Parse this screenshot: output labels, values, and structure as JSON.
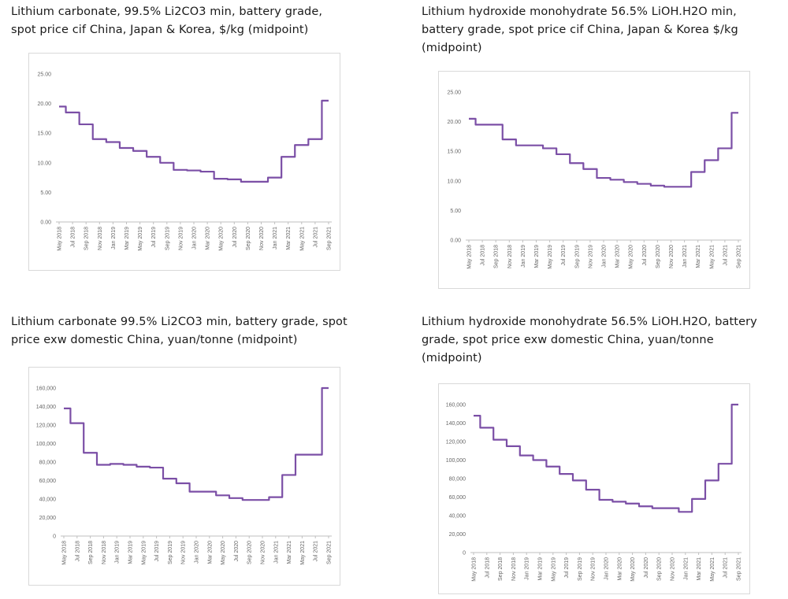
{
  "x_labels": [
    "May 2018",
    "Jul 2018",
    "Sep 2018",
    "Nov 2018",
    "Jan 2019",
    "Mar 2019",
    "May 2019",
    "Jul 2019",
    "Sep 2019",
    "Nov 2019",
    "Jan 2020",
    "Mar 2020",
    "May 2020",
    "Jul 2020",
    "Sep 2020",
    "Nov 2020",
    "Jan 2021",
    "Mar 2021",
    "May 2021",
    "Jul 2021",
    "Sep 2021"
  ],
  "colors": {
    "series": "#7b4fa6",
    "frame": "#d9d9d9"
  },
  "chart_data": [
    {
      "type": "line",
      "title": "Lithium carbonate, 99.5% Li2CO3 min, battery grade, spot price cif China, Japan & Korea, $/kg (midpoint)",
      "ylim": [
        0,
        25
      ],
      "yticks": [
        "0.00",
        "5.00",
        "10.00",
        "15.00",
        "20.00",
        "25.00"
      ],
      "x": [
        "May 2018",
        "Jul 2018",
        "Sep 2018",
        "Nov 2018",
        "Jan 2019",
        "Mar 2019",
        "May 2019",
        "Jul 2019",
        "Sep 2019",
        "Nov 2019",
        "Jan 2020",
        "Mar 2020",
        "May 2020",
        "Jul 2020",
        "Sep 2020",
        "Nov 2020",
        "Jan 2021",
        "Mar 2021",
        "May 2021",
        "Jul 2021",
        "Sep 2021"
      ],
      "series": [
        {
          "values": [
            19.5,
            18.5,
            16.5,
            14.0,
            13.5,
            12.5,
            12.0,
            11.0,
            10.0,
            8.8,
            8.7,
            8.5,
            7.3,
            7.2,
            6.8,
            6.8,
            7.5,
            11.0,
            13.0,
            14.0,
            20.5
          ]
        }
      ]
    },
    {
      "type": "line",
      "title": "Lithium hydroxide monohydrate 56.5% LiOH.H2O min, battery grade, spot price cif China, Japan & Korea $/kg (midpoint)",
      "ylim": [
        0,
        25
      ],
      "yticks": [
        "0.00",
        "5.00",
        "10.00",
        "15.00",
        "20.00",
        "25.00"
      ],
      "x": [
        "May 2018",
        "Jul 2018",
        "Sep 2018",
        "Nov 2018",
        "Jan 2019",
        "Mar 2019",
        "May 2019",
        "Jul 2019",
        "Sep 2019",
        "Nov 2019",
        "Jan 2020",
        "Mar 2020",
        "May 2020",
        "Jul 2020",
        "Sep 2020",
        "Nov 2020",
        "Jan 2021",
        "Mar 2021",
        "May 2021",
        "Jul 2021",
        "Sep 2021"
      ],
      "series": [
        {
          "values": [
            20.5,
            19.5,
            19.5,
            17.0,
            16.0,
            16.0,
            15.5,
            14.5,
            13.0,
            12.0,
            10.5,
            10.2,
            9.8,
            9.5,
            9.2,
            9.0,
            9.0,
            11.5,
            13.5,
            15.5,
            21.5
          ]
        }
      ]
    },
    {
      "type": "line",
      "title": "Lithium carbonate 99.5% Li2CO3 min, battery grade, spot price exw domestic China, yuan/tonne (midpoint)",
      "ylim": [
        0,
        160000
      ],
      "yticks": [
        "0",
        "20,000",
        "40,000",
        "60,000",
        "80,000",
        "100,000",
        "120,000",
        "140,000",
        "160,000"
      ],
      "x": [
        "May 2018",
        "Jul 2018",
        "Sep 2018",
        "Nov 2018",
        "Jan 2019",
        "Mar 2019",
        "May 2019",
        "Jul 2019",
        "Sep 2019",
        "Nov 2019",
        "Jan 2020",
        "Mar 2020",
        "May 2020",
        "Jul 2020",
        "Sep 2020",
        "Nov 2020",
        "Jan 2021",
        "Mar 2021",
        "May 2021",
        "Jul 2021",
        "Sep 2021"
      ],
      "series": [
        {
          "values": [
            138000,
            122000,
            90000,
            77000,
            78000,
            77000,
            75000,
            74000,
            62000,
            57000,
            48000,
            48000,
            44000,
            41000,
            39000,
            39000,
            42000,
            66000,
            88000,
            88000,
            160000
          ]
        }
      ]
    },
    {
      "type": "line",
      "title": "Lithium hydroxide monohydrate 56.5% LiOH.H2O, battery grade, spot price exw domestic China, yuan/tonne (midpoint)",
      "ylim": [
        0,
        160000
      ],
      "yticks": [
        "0",
        "20,000",
        "40,000",
        "60,000",
        "80,000",
        "100,000",
        "120,000",
        "140,000",
        "160,000"
      ],
      "x": [
        "May 2018",
        "Jul 2018",
        "Sep 2018",
        "Nov 2018",
        "Jan 2019",
        "Mar 2019",
        "May 2019",
        "Jul 2019",
        "Sep 2019",
        "Nov 2019",
        "Jan 2020",
        "Mar 2020",
        "May 2020",
        "Jul 2020",
        "Sep 2020",
        "Nov 2020",
        "Jan 2021",
        "Mar 2021",
        "May 2021",
        "Jul 2021",
        "Sep 2021"
      ],
      "series": [
        {
          "values": [
            148000,
            135000,
            122000,
            115000,
            105000,
            100000,
            93000,
            85000,
            78000,
            68000,
            57000,
            55000,
            53000,
            50000,
            48000,
            48000,
            44000,
            58000,
            78000,
            96000,
            160000
          ]
        }
      ]
    }
  ]
}
